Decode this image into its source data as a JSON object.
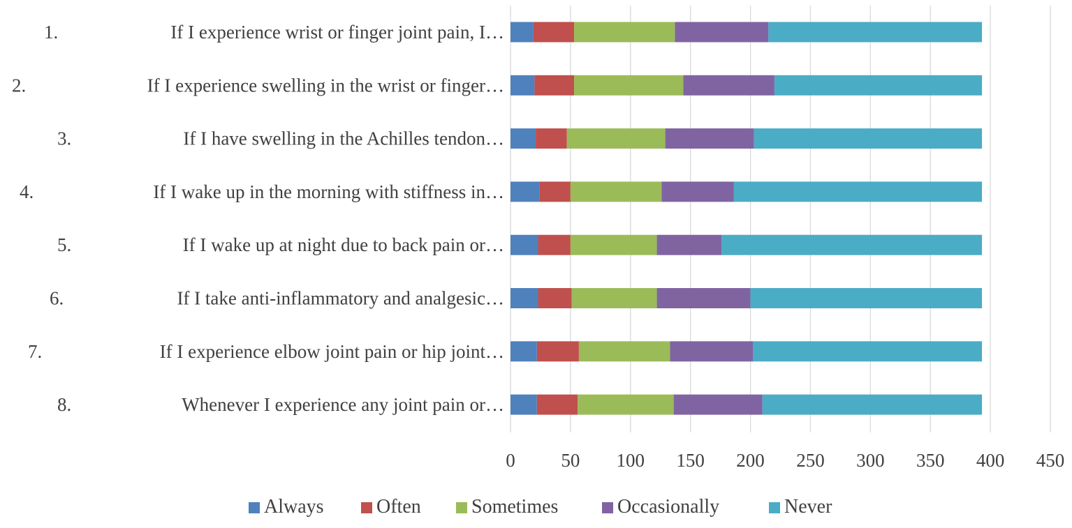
{
  "chart_data": {
    "type": "bar",
    "orientation": "horizontal",
    "stacked": true,
    "categories": [
      {
        "number": "1.",
        "label": "If I experience wrist or finger joint pain, I…"
      },
      {
        "number": "2.",
        "label": "If I experience swelling in the wrist or finger…"
      },
      {
        "number": "3.",
        "label": "If I have swelling in the Achilles tendon…"
      },
      {
        "number": "4.",
        "label": "If I wake up in the morning with stiffness in…"
      },
      {
        "number": "5.",
        "label": "If I wake up at night due to back pain or…"
      },
      {
        "number": "6.",
        "label": "If I take anti-inflammatory and analgesic…"
      },
      {
        "number": "7.",
        "label": "If I experience elbow joint pain or hip joint…"
      },
      {
        "number": "8.",
        "label": "Whenever I experience any joint pain or…"
      }
    ],
    "series": [
      {
        "name": "Always",
        "color": "#4f81bd",
        "values": [
          19,
          20,
          21,
          24,
          23,
          23,
          22,
          22
        ]
      },
      {
        "name": "Often",
        "color": "#c0504d",
        "values": [
          34,
          33,
          26,
          26,
          27,
          28,
          35,
          34
        ]
      },
      {
        "name": "Sometimes",
        "color": "#9bbb59",
        "values": [
          84,
          91,
          82,
          76,
          72,
          71,
          76,
          80
        ]
      },
      {
        "name": "Occasionally",
        "color": "#8064a2",
        "values": [
          78,
          76,
          74,
          60,
          54,
          78,
          69,
          74
        ]
      },
      {
        "name": "Never",
        "color": "#4bacc6",
        "values": [
          178,
          173,
          190,
          207,
          217,
          193,
          191,
          183
        ]
      }
    ],
    "xlim": [
      0,
      450
    ],
    "xticks": [
      0,
      50,
      100,
      150,
      200,
      250,
      300,
      350,
      400,
      450
    ],
    "grid": "vertical",
    "legend_position": "bottom"
  }
}
